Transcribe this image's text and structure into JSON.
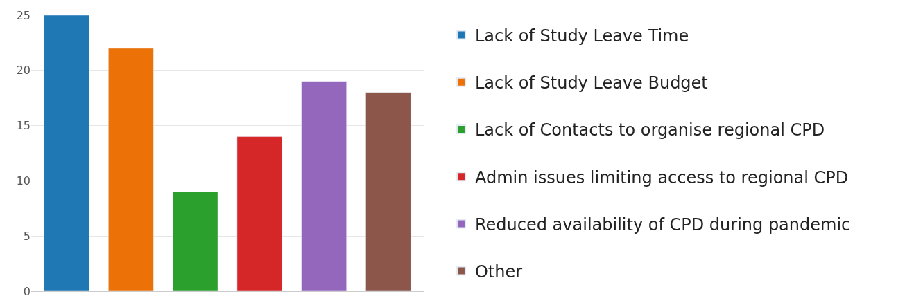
{
  "chart_data": {
    "type": "bar",
    "categories": [
      null,
      null,
      null,
      null,
      null,
      null
    ],
    "series": [
      {
        "name": "Lack of Study Leave Time",
        "color": "#1f77b4",
        "values": [
          25,
          null,
          null,
          null,
          null,
          null
        ]
      },
      {
        "name": "Lack of Study Leave Budget",
        "color": "#ec7207",
        "values": [
          null,
          22,
          null,
          null,
          null,
          null
        ]
      },
      {
        "name": "Lack of Contacts to organise regional CPD",
        "color": "#2ca02c",
        "values": [
          null,
          null,
          9,
          null,
          null,
          null
        ]
      },
      {
        "name": "Admin issues limiting access to regional CPD",
        "color": "#d62728",
        "values": [
          null,
          null,
          null,
          14,
          null,
          null
        ]
      },
      {
        "name": "Reduced availability of CPD during pandemic",
        "color": "#9467bd",
        "values": [
          null,
          null,
          null,
          null,
          19,
          null
        ]
      },
      {
        "name": "Other",
        "color": "#8c564b",
        "values": [
          null,
          null,
          null,
          null,
          null,
          18
        ]
      }
    ],
    "ylim": [
      0,
      25
    ],
    "yticks": [
      0,
      5,
      10,
      15,
      20,
      25
    ],
    "grid": "y",
    "legend": "right"
  }
}
